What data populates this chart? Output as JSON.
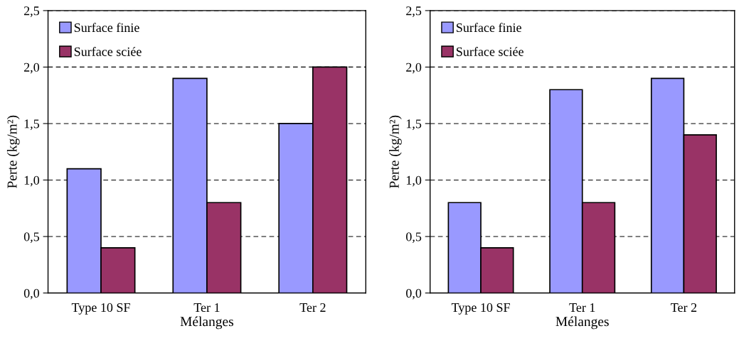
{
  "chart_data": [
    {
      "type": "bar",
      "xlabel": "Mélanges",
      "ylabel": "Perte (kg/m²)",
      "categories": [
        "Type 10 SF",
        "Ter 1",
        "Ter 2"
      ],
      "series": [
        {
          "name": "Surface finie",
          "color": "#9999ff",
          "values": [
            1.1,
            1.9,
            1.5
          ]
        },
        {
          "name": "Surface sciée",
          "color": "#993366",
          "values": [
            0.4,
            0.8,
            2.0
          ]
        }
      ],
      "ylim": [
        0,
        2.5
      ],
      "yticks": [
        {
          "value": 0,
          "label": "0,0"
        },
        {
          "value": 0.5,
          "label": "0,5"
        },
        {
          "value": 1.0,
          "label": "1,0"
        },
        {
          "value": 1.5,
          "label": "1,5"
        },
        {
          "value": 2.0,
          "label": "2,0"
        },
        {
          "value": 2.5,
          "label": "2,5"
        }
      ],
      "grid": "y",
      "legend": "top left"
    },
    {
      "type": "bar",
      "xlabel": "Mélanges",
      "ylabel": "Perte (kg/m²)",
      "categories": [
        "Type 10 SF",
        "Ter 1",
        "Ter 2"
      ],
      "series": [
        {
          "name": "Surface finie",
          "color": "#9999ff",
          "values": [
            0.8,
            1.8,
            1.9
          ]
        },
        {
          "name": "Surface sciée",
          "color": "#993366",
          "values": [
            0.4,
            0.8,
            1.4
          ]
        }
      ],
      "ylim": [
        0,
        2.5
      ],
      "yticks": [
        {
          "value": 0,
          "label": "0,0"
        },
        {
          "value": 0.5,
          "label": "0,5"
        },
        {
          "value": 1.0,
          "label": "1,0"
        },
        {
          "value": 1.5,
          "label": "1,5"
        },
        {
          "value": 2.0,
          "label": "2,0"
        },
        {
          "value": 2.5,
          "label": "2,5"
        }
      ],
      "grid": "y",
      "legend": "top left"
    }
  ]
}
